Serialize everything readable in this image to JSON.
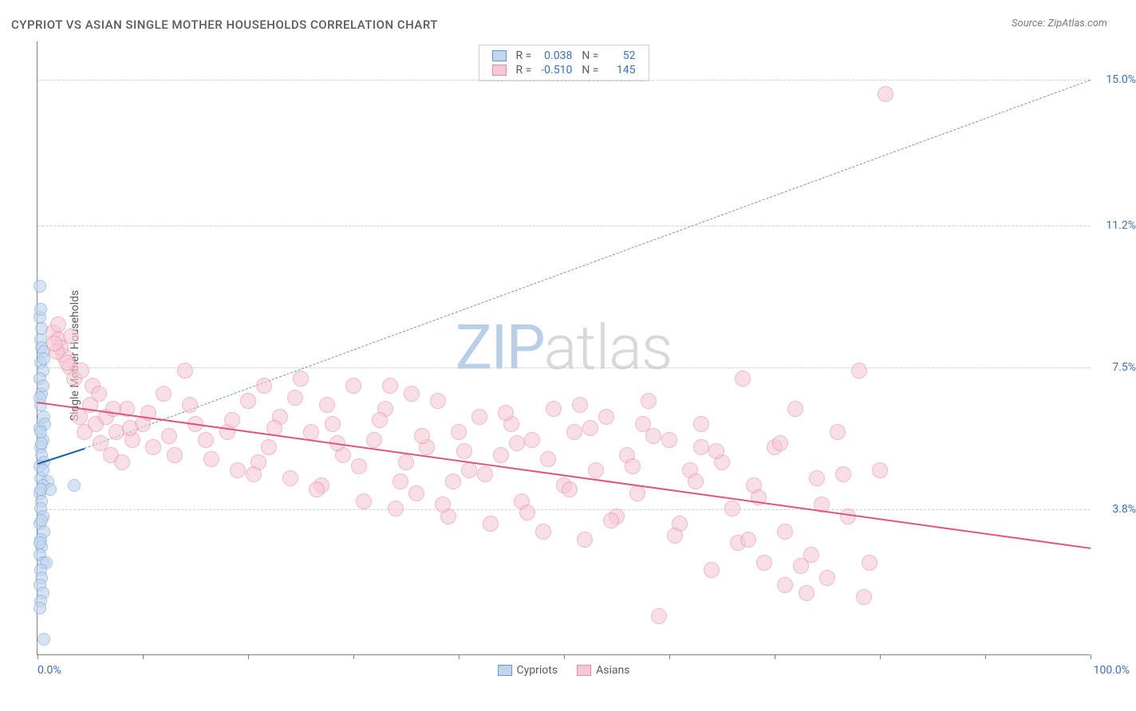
{
  "title": "CYPRIOT VS ASIAN SINGLE MOTHER HOUSEHOLDS CORRELATION CHART",
  "source": "Source: ZipAtlas.com",
  "watermark_a": "ZIP",
  "watermark_b": "atlas",
  "y_axis_label": "Single Mother Households",
  "x_axis": {
    "min_label": "0.0%",
    "max_label": "100.0%",
    "min": 0,
    "max": 100,
    "tick_positions": [
      0,
      10,
      20,
      30,
      40,
      50,
      60,
      70,
      80,
      90,
      100
    ]
  },
  "y_axis": {
    "min": 0,
    "max": 16,
    "gridlines": [
      {
        "v": 3.8,
        "label": "3.8%"
      },
      {
        "v": 7.5,
        "label": "7.5%"
      },
      {
        "v": 11.2,
        "label": "11.2%"
      },
      {
        "v": 15.0,
        "label": "15.0%"
      }
    ]
  },
  "series": [
    {
      "name": "Cypriots",
      "color_fill": "#c0d5ee",
      "color_stroke": "#7fa8d9",
      "swatch_fill": "#c0d5ee",
      "swatch_stroke": "#6a94c7",
      "marker_radius": 8,
      "marker_opacity": 0.65,
      "R": "0.038",
      "N": "52",
      "trend": {
        "x1": 0,
        "y1": 5.0,
        "x2": 4.5,
        "y2": 5.4,
        "color": "#1f5fa8",
        "width": 2,
        "dash": false
      },
      "trend_ext": {
        "x1": 4.5,
        "y1": 5.4,
        "x2": 100,
        "y2": 15.0,
        "color": "#6a94c7",
        "width": 1,
        "dash": true
      },
      "points": [
        [
          0.2,
          9.6
        ],
        [
          0.3,
          8.2
        ],
        [
          0.4,
          8.0
        ],
        [
          0.6,
          7.9
        ],
        [
          0.3,
          7.6
        ],
        [
          0.5,
          7.4
        ],
        [
          0.2,
          7.2
        ],
        [
          0.4,
          6.8
        ],
        [
          0.3,
          6.5
        ],
        [
          0.6,
          6.2
        ],
        [
          0.2,
          5.9
        ],
        [
          0.5,
          5.6
        ],
        [
          0.3,
          5.4
        ],
        [
          0.4,
          5.2
        ],
        [
          0.6,
          5.0
        ],
        [
          0.2,
          4.9
        ],
        [
          0.3,
          4.6
        ],
        [
          1.0,
          4.5
        ],
        [
          0.5,
          4.4
        ],
        [
          0.2,
          4.2
        ],
        [
          0.4,
          4.0
        ],
        [
          0.3,
          3.8
        ],
        [
          0.5,
          3.6
        ],
        [
          0.2,
          3.4
        ],
        [
          0.6,
          3.2
        ],
        [
          0.3,
          3.0
        ],
        [
          0.4,
          2.8
        ],
        [
          0.2,
          2.6
        ],
        [
          0.5,
          2.4
        ],
        [
          0.8,
          2.4
        ],
        [
          1.2,
          4.3
        ],
        [
          0.3,
          2.2
        ],
        [
          0.4,
          2.0
        ],
        [
          0.2,
          1.8
        ],
        [
          0.5,
          1.6
        ],
        [
          0.3,
          1.4
        ],
        [
          0.2,
          1.2
        ],
        [
          0.6,
          0.4
        ],
        [
          3.5,
          4.4
        ],
        [
          0.4,
          8.5
        ],
        [
          0.2,
          8.8
        ],
        [
          0.5,
          7.0
        ],
        [
          0.3,
          9.0
        ],
        [
          0.7,
          6.0
        ],
        [
          0.4,
          3.5
        ],
        [
          0.2,
          2.9
        ],
        [
          0.5,
          4.8
        ],
        [
          0.3,
          5.8
        ],
        [
          0.6,
          7.7
        ],
        [
          0.2,
          6.7
        ],
        [
          0.4,
          5.5
        ],
        [
          0.3,
          4.3
        ]
      ]
    },
    {
      "name": "Asians",
      "color_fill": "#f5c9d4",
      "color_stroke": "#e88ca5",
      "swatch_fill": "#f5c9d4",
      "swatch_stroke": "#e88ca5",
      "marker_radius": 10,
      "marker_opacity": 0.6,
      "R": "-0.510",
      "N": "145",
      "trend": {
        "x1": 0,
        "y1": 6.6,
        "x2": 100,
        "y2": 2.8,
        "color": "#e0557a",
        "width": 2.5,
        "dash": false
      },
      "points": [
        [
          1.5,
          8.4
        ],
        [
          2.0,
          8.2
        ],
        [
          2.5,
          7.8
        ],
        [
          2.2,
          8.0
        ],
        [
          3.0,
          7.5
        ],
        [
          3.5,
          7.2
        ],
        [
          1.8,
          7.9
        ],
        [
          2.8,
          7.6
        ],
        [
          4.0,
          6.2
        ],
        [
          4.5,
          5.8
        ],
        [
          5.0,
          6.5
        ],
        [
          5.5,
          6.0
        ],
        [
          6.0,
          5.5
        ],
        [
          6.5,
          6.2
        ],
        [
          7.0,
          5.2
        ],
        [
          7.5,
          5.8
        ],
        [
          8.0,
          5.0
        ],
        [
          8.5,
          6.4
        ],
        [
          9.0,
          5.6
        ],
        [
          10.0,
          6.0
        ],
        [
          11.0,
          5.4
        ],
        [
          12.0,
          6.8
        ],
        [
          13.0,
          5.2
        ],
        [
          14.0,
          7.4
        ],
        [
          15.0,
          6.0
        ],
        [
          16.0,
          5.6
        ],
        [
          5.2,
          7.0
        ],
        [
          18.0,
          5.8
        ],
        [
          19.0,
          4.8
        ],
        [
          20.0,
          6.6
        ],
        [
          21.0,
          5.0
        ],
        [
          22.0,
          5.4
        ],
        [
          23.0,
          6.2
        ],
        [
          24.0,
          4.6
        ],
        [
          25.0,
          7.2
        ],
        [
          26.0,
          5.8
        ],
        [
          27.0,
          4.4
        ],
        [
          28.0,
          6.0
        ],
        [
          29.0,
          5.2
        ],
        [
          30.0,
          7.0
        ],
        [
          31.0,
          4.0
        ],
        [
          32.0,
          5.6
        ],
        [
          33.0,
          6.4
        ],
        [
          34.0,
          3.8
        ],
        [
          35.0,
          5.0
        ],
        [
          35.5,
          6.8
        ],
        [
          36.0,
          4.2
        ],
        [
          37.0,
          5.4
        ],
        [
          38.0,
          6.6
        ],
        [
          39.0,
          3.6
        ],
        [
          40.0,
          5.8
        ],
        [
          41.0,
          4.8
        ],
        [
          42.0,
          6.2
        ],
        [
          43.0,
          3.4
        ],
        [
          44.0,
          5.2
        ],
        [
          45.0,
          6.0
        ],
        [
          46.0,
          4.0
        ],
        [
          47.0,
          5.6
        ],
        [
          48.0,
          3.2
        ],
        [
          49.0,
          6.4
        ],
        [
          50.0,
          4.4
        ],
        [
          51.0,
          5.8
        ],
        [
          52.0,
          3.0
        ],
        [
          53.0,
          4.8
        ],
        [
          54.0,
          6.2
        ],
        [
          55.0,
          3.6
        ],
        [
          56.0,
          5.2
        ],
        [
          57.0,
          4.2
        ],
        [
          58.0,
          6.6
        ],
        [
          59.0,
          1.0
        ],
        [
          60.0,
          5.6
        ],
        [
          61.0,
          3.4
        ],
        [
          62.0,
          4.8
        ],
        [
          63.0,
          6.0
        ],
        [
          64.0,
          2.2
        ],
        [
          65.0,
          5.0
        ],
        [
          66.0,
          3.8
        ],
        [
          67.0,
          7.2
        ],
        [
          68.0,
          4.4
        ],
        [
          69.0,
          2.4
        ],
        [
          70.0,
          5.4
        ],
        [
          71.0,
          3.2
        ],
        [
          72.0,
          6.4
        ],
        [
          73.0,
          1.6
        ],
        [
          74.0,
          4.6
        ],
        [
          75.0,
          2.0
        ],
        [
          76.0,
          5.8
        ],
        [
          77.0,
          3.6
        ],
        [
          78.0,
          7.4
        ],
        [
          79.0,
          2.4
        ],
        [
          80.0,
          4.8
        ],
        [
          80.5,
          14.6
        ],
        [
          2.0,
          8.6
        ],
        [
          3.2,
          8.3
        ],
        [
          1.6,
          8.1
        ],
        [
          4.2,
          7.4
        ],
        [
          5.8,
          6.8
        ],
        [
          7.2,
          6.4
        ],
        [
          8.8,
          5.9
        ],
        [
          10.5,
          6.3
        ],
        [
          12.5,
          5.7
        ],
        [
          14.5,
          6.5
        ],
        [
          16.5,
          5.1
        ],
        [
          18.5,
          6.1
        ],
        [
          20.5,
          4.7
        ],
        [
          22.5,
          5.9
        ],
        [
          24.5,
          6.7
        ],
        [
          26.5,
          4.3
        ],
        [
          28.5,
          5.5
        ],
        [
          30.5,
          4.9
        ],
        [
          32.5,
          6.1
        ],
        [
          34.5,
          4.5
        ],
        [
          36.5,
          5.7
        ],
        [
          38.5,
          3.9
        ],
        [
          40.5,
          5.3
        ],
        [
          42.5,
          4.7
        ],
        [
          44.5,
          6.3
        ],
        [
          46.5,
          3.7
        ],
        [
          48.5,
          5.1
        ],
        [
          50.5,
          4.3
        ],
        [
          52.5,
          5.9
        ],
        [
          54.5,
          3.5
        ],
        [
          56.5,
          4.9
        ],
        [
          58.5,
          5.7
        ],
        [
          60.5,
          3.1
        ],
        [
          62.5,
          4.5
        ],
        [
          64.5,
          5.3
        ],
        [
          66.5,
          2.9
        ],
        [
          68.5,
          4.1
        ],
        [
          70.5,
          5.5
        ],
        [
          72.5,
          2.3
        ],
        [
          74.5,
          3.9
        ],
        [
          76.5,
          4.7
        ],
        [
          78.5,
          1.5
        ],
        [
          71.0,
          1.8
        ],
        [
          73.5,
          2.6
        ],
        [
          67.5,
          3.0
        ],
        [
          63.0,
          5.4
        ],
        [
          57.5,
          6.0
        ],
        [
          51.5,
          6.5
        ],
        [
          45.5,
          5.5
        ],
        [
          39.5,
          4.5
        ],
        [
          33.5,
          7.0
        ],
        [
          27.5,
          6.5
        ],
        [
          21.5,
          7.0
        ]
      ]
    }
  ],
  "legend_labels": {
    "R": "R =",
    "N": "N ="
  },
  "colors": {
    "title": "#5a5a5a",
    "source": "#7a7a7a",
    "axis": "#808080",
    "grid": "#d0d0d0",
    "tick_label": "#3b6fb6",
    "background": "#ffffff"
  }
}
